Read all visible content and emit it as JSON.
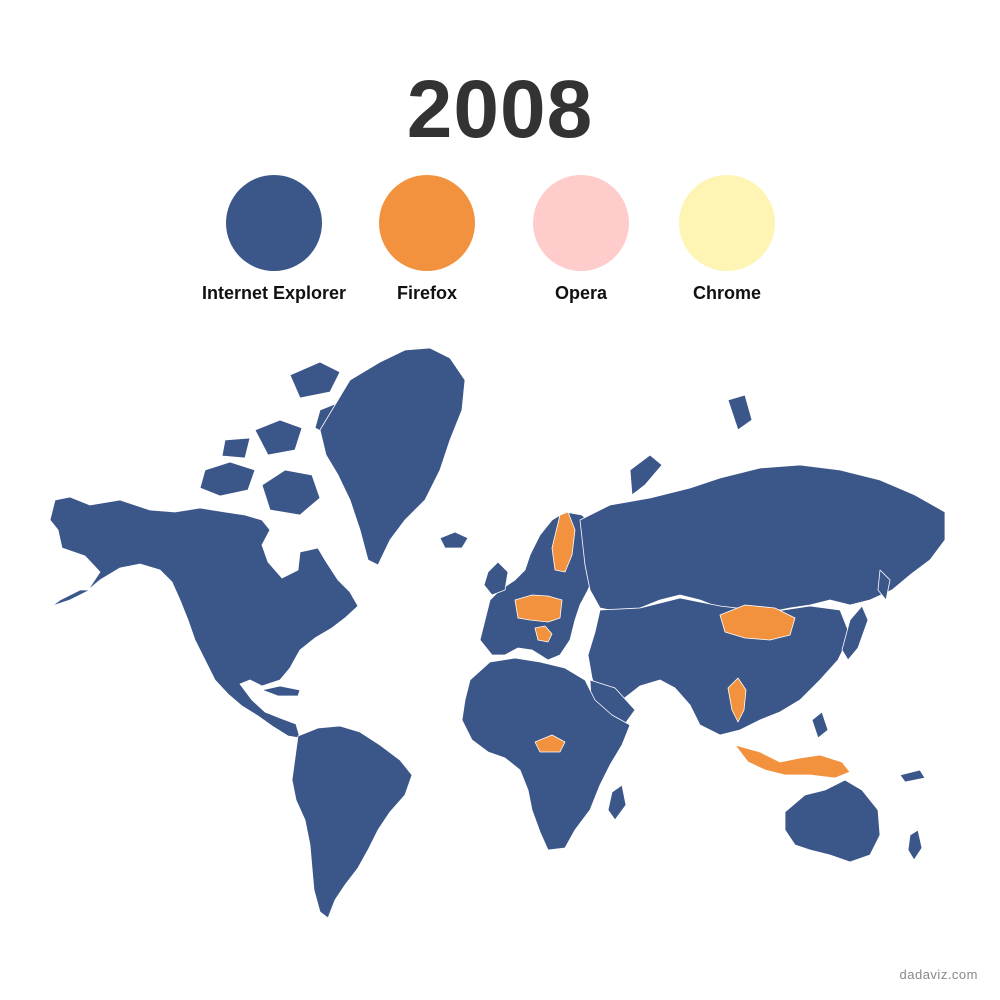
{
  "title": "2008",
  "legend": [
    {
      "label": "Internet Explorer",
      "color": "#3b5689"
    },
    {
      "label": "Firefox",
      "color": "#f2923e"
    },
    {
      "label": "Opera",
      "color": "#ffcccc"
    },
    {
      "label": "Chrome",
      "color": "#fef5b5"
    }
  ],
  "map": {
    "default_browser": "Internet Explorer",
    "countries_firefox": [
      "Finland",
      "Germany",
      "Poland",
      "Czech Republic",
      "Slovakia",
      "Slovenia",
      "Croatia",
      "Bosnia and Herzegovina",
      "Serbia",
      "Mongolia",
      "Myanmar",
      "Central African Republic",
      "Indonesia",
      "Papua New Guinea"
    ],
    "countries_opera": [],
    "countries_chrome": []
  },
  "credit": "dadaviz.com"
}
